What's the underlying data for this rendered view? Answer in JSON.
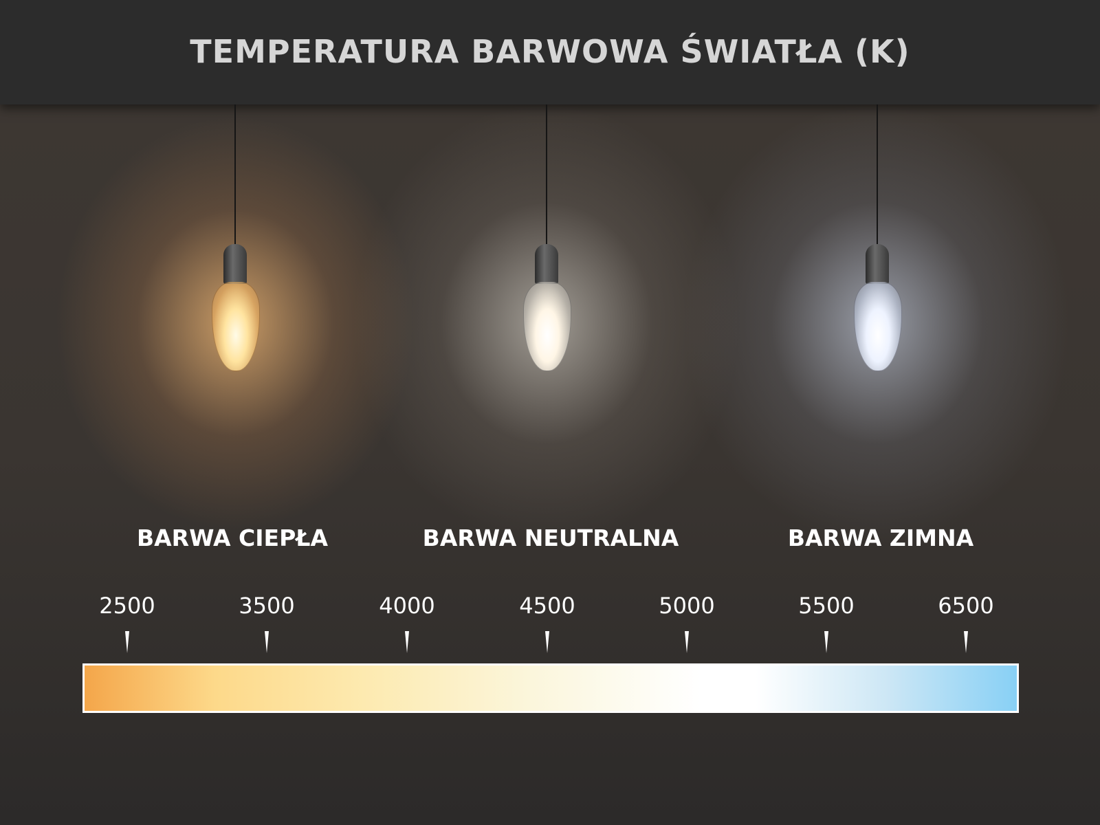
{
  "title": "TEMPERATURA BARWOWA ŚWIATŁA (K)",
  "bulbs": [
    {
      "name": "warm",
      "color": "#ffd890"
    },
    {
      "name": "neutral",
      "color": "#fff6e6"
    },
    {
      "name": "cool",
      "color": "#eef3ff"
    }
  ],
  "labels": [
    "BARWA CIEPŁA",
    "BARWA NEUTRALNA",
    "BARWA ZIMNA"
  ],
  "scale": [
    "2500",
    "3500",
    "4000",
    "4500",
    "5000",
    "5500",
    "6500"
  ],
  "gradient_colors": [
    "#f4a64a",
    "#fdd98a",
    "#fbf6dc",
    "#ffffff",
    "#88d0f5"
  ]
}
